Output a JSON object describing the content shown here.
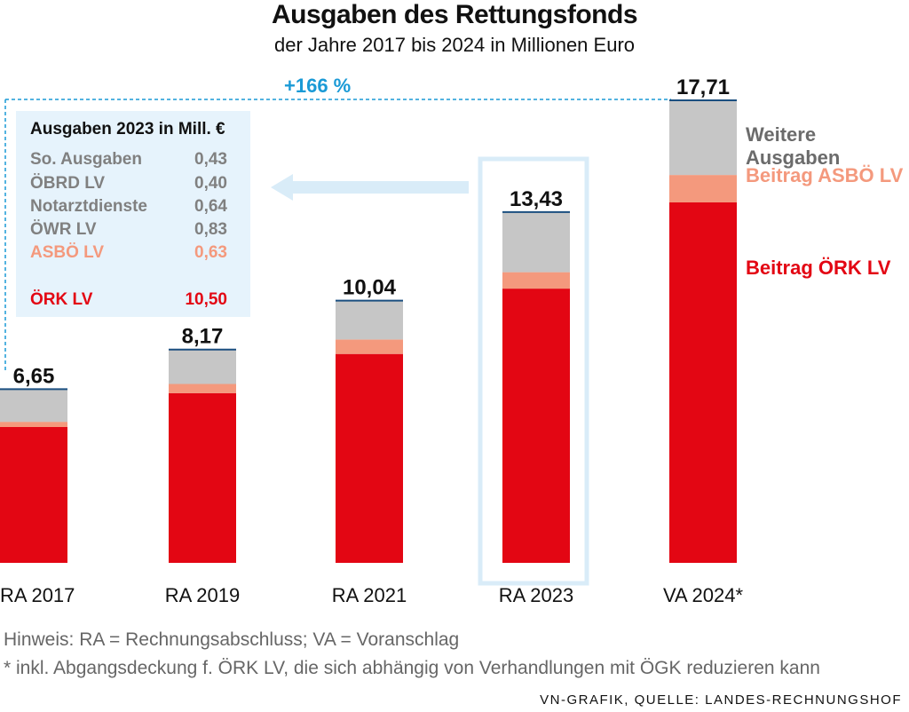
{
  "header": {
    "title": "Ausgaben des Rettungsfonds",
    "subtitle": "der Jahre 2017 bis 2024 in Millionen Euro"
  },
  "chart_data": {
    "type": "bar",
    "stacked": true,
    "categories": [
      "RA 2017",
      "RA 2019",
      "RA 2021",
      "RA 2023",
      "VA 2024*"
    ],
    "totals": [
      "6,65",
      "8,17",
      "10,04",
      "13,43",
      "17,71"
    ],
    "highlight_category": "RA 2023",
    "series": [
      {
        "name": "Beitrag ÖRK LV",
        "values": [
          5.2,
          6.5,
          8.0,
          10.5,
          13.8
        ]
      },
      {
        "name": "Beitrag ASBÖ LV",
        "values": [
          0.2,
          0.35,
          0.55,
          0.63,
          1.05
        ]
      },
      {
        "name": "Weitere Ausgaben",
        "values": [
          1.25,
          1.32,
          1.49,
          2.3,
          2.86
        ]
      }
    ],
    "ylim": [
      0,
      17.71
    ],
    "growth_annotation": "+166 %",
    "xlabel": "",
    "ylabel": ""
  },
  "colors": {
    "oerk": "#e30613",
    "asboe": "#f4997d",
    "weitere": "#c6c6c6",
    "accent_blue": "#1a9ad6",
    "panel_bg": "#e6f3fc",
    "arrow": "#d9ecf8",
    "highlight_frame": "#d9ecf8",
    "total_line": "#1b4f80"
  },
  "legend": {
    "weitere": "Weitere Ausgaben",
    "asboe": "Beitrag ASBÖ LV",
    "oerk": "Beitrag ÖRK LV"
  },
  "table": {
    "title": "Ausgaben 2023 in Mill. €",
    "rows": [
      {
        "label": "So. Ausgaben",
        "value": "0,43",
        "color": "#808080"
      },
      {
        "label": "ÖBRD LV",
        "value": "0,40",
        "color": "#808080"
      },
      {
        "label": "Notarztdienste",
        "value": "0,64",
        "color": "#808080"
      },
      {
        "label": "ÖWR LV",
        "value": "0,83",
        "color": "#808080"
      },
      {
        "label": "ASBÖ LV",
        "value": "0,63",
        "color": "#f4997d"
      },
      {
        "label": "ÖRK LV",
        "value": "10,50",
        "color": "#e30613"
      }
    ]
  },
  "notes": {
    "hint": "Hinweis: RA = Rechnungsabschluss; VA = Voranschlag",
    "footnote": "* inkl. Abgangsdeckung f. ÖRK LV, die sich abhängig von Verhandlungen mit ÖGK reduzieren kann",
    "source": "VN-GRAFIK, QUELLE: LANDES-RECHNUNGSHOF"
  }
}
